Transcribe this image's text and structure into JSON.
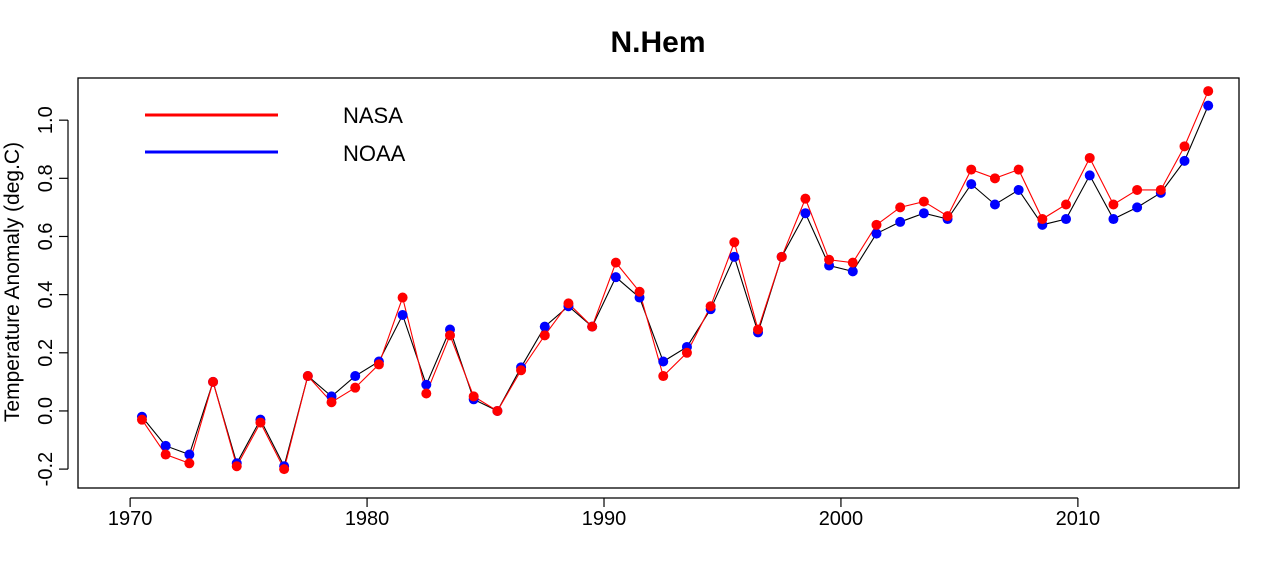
{
  "chart_data": {
    "type": "line",
    "title": "N.Hem",
    "xlabel": "",
    "ylabel": "Temperature Anomaly (deg.C)",
    "xlim": [
      1967.8,
      2016.8
    ],
    "ylim": [
      -0.265,
      1.145
    ],
    "x_ticks": [
      1970,
      1980,
      1990,
      2000,
      2010
    ],
    "x_tick_labels": [
      "1970",
      "1980",
      "1990",
      "2000",
      "2010"
    ],
    "y_ticks": [
      -0.2,
      0.0,
      0.2,
      0.4,
      0.6,
      0.8,
      1.0
    ],
    "y_tick_labels": [
      "-0.2",
      "0.0",
      "0.2",
      "0.4",
      "0.6",
      "0.8",
      "1.0"
    ],
    "grid": false,
    "legend_position": "top-left",
    "x": [
      1970.5,
      1971.5,
      1972.5,
      1973.5,
      1974.5,
      1975.5,
      1976.5,
      1977.5,
      1978.5,
      1979.5,
      1980.5,
      1981.5,
      1982.5,
      1983.5,
      1984.5,
      1985.5,
      1986.5,
      1987.5,
      1988.5,
      1989.5,
      1990.5,
      1991.5,
      1992.5,
      1993.5,
      1994.5,
      1995.5,
      1996.5,
      1997.5,
      1998.5,
      1999.5,
      2000.5,
      2001.5,
      2002.5,
      2003.5,
      2004.5,
      2005.5,
      2006.5,
      2007.5,
      2008.5,
      2009.5,
      2010.5,
      2011.5,
      2012.5,
      2013.5,
      2014.5,
      2015.5
    ],
    "series": [
      {
        "name": "NOAA",
        "color": "#0000ff",
        "values": [
          -0.02,
          -0.12,
          -0.15,
          0.1,
          -0.18,
          -0.03,
          -0.19,
          0.12,
          0.05,
          0.12,
          0.17,
          0.33,
          0.09,
          0.28,
          0.04,
          0.0,
          0.15,
          0.29,
          0.36,
          0.29,
          0.46,
          0.39,
          0.17,
          0.22,
          0.35,
          0.53,
          0.27,
          0.53,
          0.68,
          0.5,
          0.48,
          0.61,
          0.65,
          0.68,
          0.66,
          0.78,
          0.71,
          0.76,
          0.64,
          0.66,
          0.81,
          0.66,
          0.7,
          0.75,
          0.86,
          1.05
        ]
      },
      {
        "name": "NASA",
        "color": "#ff0000",
        "values": [
          -0.03,
          -0.15,
          -0.18,
          0.1,
          -0.19,
          -0.04,
          -0.2,
          0.12,
          0.03,
          0.08,
          0.16,
          0.39,
          0.06,
          0.26,
          0.05,
          0.0,
          0.14,
          0.26,
          0.37,
          0.29,
          0.51,
          0.41,
          0.12,
          0.2,
          0.36,
          0.58,
          0.28,
          0.53,
          0.73,
          0.52,
          0.51,
          0.64,
          0.7,
          0.72,
          0.67,
          0.83,
          0.8,
          0.83,
          0.66,
          0.71,
          0.87,
          0.71,
          0.76,
          0.76,
          0.91,
          1.1
        ]
      }
    ]
  }
}
